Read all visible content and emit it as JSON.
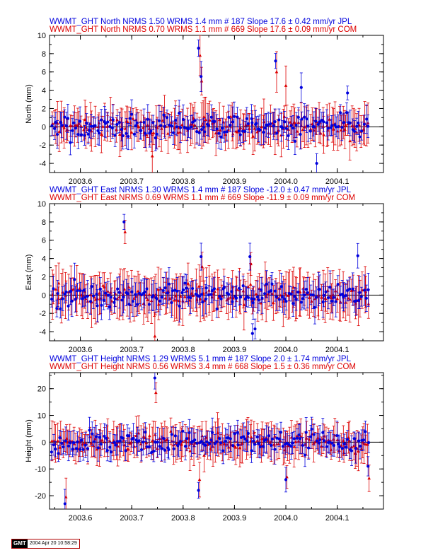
{
  "colors": {
    "jpl": "#0000dd",
    "com": "#dd0000",
    "axis": "#000000"
  },
  "footer": {
    "logo": "GMT",
    "timestamp": "2004 Apr 20 10:58:29"
  },
  "chart_data": [
    {
      "type": "scatter",
      "ylabel": "North (mm)",
      "ylim": [
        -5,
        10
      ],
      "yticks": [
        -4,
        -2,
        0,
        2,
        4,
        6,
        8,
        10
      ],
      "xlim": [
        2003.54,
        2004.19
      ],
      "xticks": [
        2003.6,
        2003.7,
        2003.8,
        2003.9,
        2004.0,
        2004.1
      ],
      "xticklabels": [
        "2003.6",
        "2003.7",
        "2003.8",
        "2003.9",
        "2004.0",
        "2004.1"
      ],
      "legend": [
        "WWMT_GHT North NRMS 1.50 WRMS  1.4 mm # 187 Slope   17.6 ±  0.42 mm/yr JPL",
        "WWMT_GHT North NRMS 0.70 WRMS  1.1 mm # 669 Slope   17.6 ±  0.09 mm/yr COM"
      ],
      "series": [
        {
          "name": "JPL",
          "rms": 1.4,
          "err": 1.2,
          "outliers": [
            [
              2003.83,
              8.6
            ],
            [
              2003.835,
              5.5
            ],
            [
              2003.98,
              7.2
            ],
            [
              2004.03,
              4.3
            ],
            [
              2004.06,
              -4.0
            ],
            [
              2004.12,
              3.7
            ]
          ]
        },
        {
          "name": "COM",
          "rms": 1.1,
          "err": 1.8,
          "outliers": [
            [
              2003.833,
              7.8
            ],
            [
              2003.836,
              5.0
            ],
            [
              2003.982,
              6.0
            ],
            [
              2004.0,
              4.5
            ],
            [
              2003.74,
              -3.2
            ]
          ]
        }
      ]
    },
    {
      "type": "scatter",
      "ylabel": "East (mm)",
      "ylim": [
        -5,
        10
      ],
      "yticks": [
        -4,
        -2,
        0,
        2,
        4,
        6,
        8,
        10
      ],
      "xlim": [
        2003.54,
        2004.19
      ],
      "xticks": [
        2003.6,
        2003.7,
        2003.8,
        2003.9,
        2004.0,
        2004.1
      ],
      "xticklabels": [
        "2003.6",
        "2003.7",
        "2003.8",
        "2003.9",
        "2004.0",
        "2004.1"
      ],
      "legend": [
        "WWMT_GHT East NRMS 1.30 WRMS  1.4 mm # 187 Slope  -12.0 ±  0.47 mm/yr JPL",
        "WWMT_GHT East NRMS 0.69 WRMS  1.1 mm # 669 Slope  -11.9 ±  0.09 mm/yr COM"
      ],
      "series": [
        {
          "name": "JPL",
          "rms": 1.4,
          "err": 1.3,
          "outliers": [
            [
              2003.685,
              8.0
            ],
            [
              2003.835,
              4.2
            ],
            [
              2003.93,
              4.2
            ],
            [
              2003.935,
              -4.2
            ],
            [
              2003.94,
              -3.7
            ],
            [
              2004.14,
              4.3
            ]
          ]
        },
        {
          "name": "COM",
          "rms": 1.1,
          "err": 2.0,
          "outliers": [
            [
              2003.687,
              6.9
            ],
            [
              2003.837,
              3.1
            ],
            [
              2003.932,
              3.4
            ],
            [
              2003.745,
              -4.5
            ]
          ]
        }
      ]
    },
    {
      "type": "scatter",
      "ylabel": "Height (mm)",
      "ylim": [
        -25,
        26
      ],
      "yticks": [
        -20,
        -10,
        0,
        10,
        20
      ],
      "xlim": [
        2003.54,
        2004.19
      ],
      "xticks": [
        2003.6,
        2003.7,
        2003.8,
        2003.9,
        2004.0,
        2004.1
      ],
      "xticklabels": [
        "2003.6",
        "2003.7",
        "2003.8",
        "2003.9",
        "2004.0",
        "2004.1"
      ],
      "legend": [
        "WWMT_GHT Height NRMS 1.29 WRMS  5.1 mm # 187 Slope    2.0 ±  1.74 mm/yr JPL",
        "WWMT_GHT Height NRMS 0.56 WRMS  3.4 mm # 668 Slope    1.5 ±  0.36 mm/yr COM"
      ],
      "series": [
        {
          "name": "JPL",
          "rms": 5.1,
          "err": 4.0,
          "outliers": [
            [
              2003.745,
              24.0
            ],
            [
              2003.57,
              -23.0
            ],
            [
              2004.0,
              -14.0
            ],
            [
              2003.83,
              -18.0
            ],
            [
              2004.16,
              -9.0
            ]
          ]
        },
        {
          "name": "COM",
          "rms": 3.4,
          "err": 5.5,
          "outliers": [
            [
              2003.747,
              18.5
            ],
            [
              2003.572,
              -20.5
            ],
            [
              2004.002,
              -13.0
            ],
            [
              2003.832,
              -14.0
            ],
            [
              2004.162,
              -13.5
            ]
          ]
        }
      ]
    }
  ]
}
